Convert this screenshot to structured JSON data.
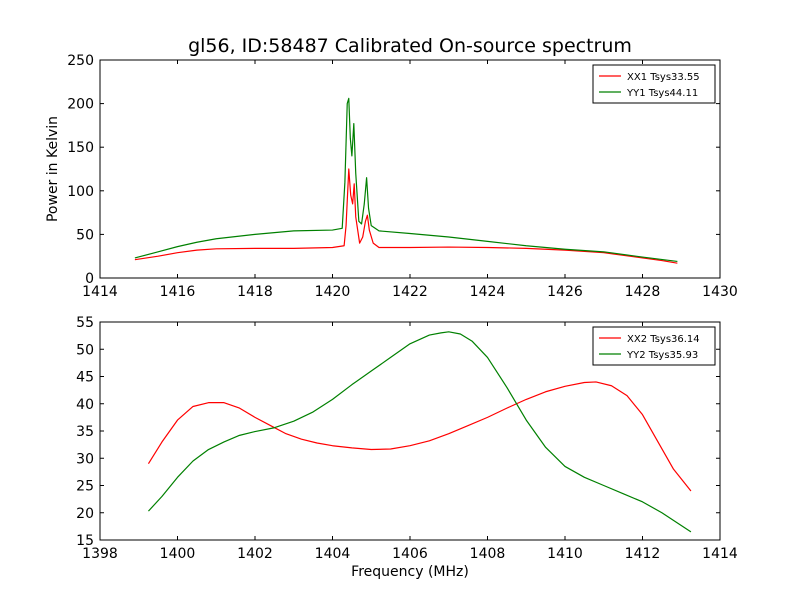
{
  "figure": {
    "title": "gl56, ID:58487 Calibrated On-source spectrum"
  },
  "chart_data": [
    {
      "type": "line",
      "title": "gl56, ID:58487 Calibrated On-source spectrum",
      "xlabel": "",
      "ylabel": "Power in Kelvin",
      "xlim": [
        1414,
        1430
      ],
      "ylim": [
        0,
        250
      ],
      "xticks": [
        1414,
        1416,
        1418,
        1420,
        1422,
        1424,
        1426,
        1428,
        1430
      ],
      "yticks": [
        0,
        50,
        100,
        150,
        200,
        250
      ],
      "legend": "top-right",
      "grid": false,
      "series": [
        {
          "name": "XX1 Tsys33.55",
          "color": "#ff0000",
          "x": [
            1414.9,
            1415.5,
            1416.0,
            1416.5,
            1417.0,
            1418.0,
            1419.0,
            1420.0,
            1420.3,
            1420.35,
            1420.42,
            1420.47,
            1420.52,
            1420.56,
            1420.6,
            1420.7,
            1420.78,
            1420.85,
            1420.9,
            1420.95,
            1421.05,
            1421.2,
            1422.0,
            1423.0,
            1424.0,
            1425.0,
            1426.0,
            1427.0,
            1427.5,
            1428.0,
            1428.5,
            1428.9
          ],
          "y": [
            21,
            25,
            29,
            32,
            33.5,
            34,
            34,
            35,
            37,
            60,
            125,
            95,
            85,
            108,
            70,
            40,
            47,
            65,
            72,
            55,
            40,
            35,
            35,
            35.5,
            35,
            34,
            32,
            29,
            26,
            23,
            20,
            17
          ]
        },
        {
          "name": "YY1 Tsys44.11",
          "color": "#008000",
          "x": [
            1414.9,
            1415.5,
            1416.0,
            1416.5,
            1417.0,
            1418.0,
            1419.0,
            1420.0,
            1420.25,
            1420.32,
            1420.38,
            1420.42,
            1420.46,
            1420.5,
            1420.55,
            1420.6,
            1420.68,
            1420.75,
            1420.82,
            1420.88,
            1420.93,
            1421.0,
            1421.2,
            1422.0,
            1423.0,
            1424.0,
            1425.0,
            1426.0,
            1427.0,
            1428.0,
            1428.9
          ],
          "y": [
            23,
            30,
            36,
            41,
            45,
            50,
            54,
            55,
            57,
            110,
            200,
            206,
            160,
            140,
            177,
            120,
            65,
            62,
            85,
            115,
            80,
            60,
            54,
            51,
            47,
            42,
            37,
            33,
            30,
            24,
            19
          ]
        }
      ]
    },
    {
      "type": "line",
      "title": "",
      "xlabel": "Frequency (MHz)",
      "ylabel": "",
      "xlim": [
        1398,
        1414
      ],
      "ylim": [
        15,
        55
      ],
      "xticks": [
        1398,
        1400,
        1402,
        1404,
        1406,
        1408,
        1410,
        1412,
        1414
      ],
      "yticks": [
        15,
        20,
        25,
        30,
        35,
        40,
        45,
        50,
        55
      ],
      "legend": "top-right",
      "grid": false,
      "series": [
        {
          "name": "XX2 Tsys36.14",
          "color": "#ff0000",
          "x": [
            1399.25,
            1399.6,
            1400.0,
            1400.4,
            1400.8,
            1401.2,
            1401.6,
            1402.0,
            1402.4,
            1402.8,
            1403.2,
            1403.6,
            1404.0,
            1404.5,
            1405.0,
            1405.5,
            1406.0,
            1406.5,
            1407.0,
            1407.5,
            1408.0,
            1408.5,
            1409.0,
            1409.5,
            1410.0,
            1410.5,
            1410.8,
            1411.2,
            1411.6,
            1412.0,
            1412.4,
            1412.8,
            1413.25
          ],
          "y": [
            29,
            33,
            37,
            39.5,
            40.2,
            40.2,
            39.2,
            37.5,
            36,
            34.5,
            33.5,
            32.8,
            32.3,
            31.9,
            31.6,
            31.7,
            32.3,
            33.2,
            34.5,
            36,
            37.5,
            39.2,
            40.8,
            42.2,
            43.2,
            43.9,
            44,
            43.3,
            41.5,
            38,
            33,
            28,
            24
          ]
        },
        {
          "name": "YY2 Tsys35.93",
          "color": "#008000",
          "x": [
            1399.25,
            1399.6,
            1400.0,
            1400.4,
            1400.8,
            1401.2,
            1401.6,
            1402.0,
            1402.5,
            1403.0,
            1403.5,
            1404.0,
            1404.5,
            1405.0,
            1405.5,
            1406.0,
            1406.5,
            1406.8,
            1407.0,
            1407.3,
            1407.6,
            1408.0,
            1408.5,
            1409.0,
            1409.5,
            1410.0,
            1410.5,
            1411.0,
            1411.5,
            1412.0,
            1412.5,
            1413.25
          ],
          "y": [
            20.3,
            23,
            26.5,
            29.5,
            31.6,
            33,
            34.2,
            34.9,
            35.6,
            36.8,
            38.5,
            40.8,
            43.5,
            46,
            48.5,
            51,
            52.6,
            53,
            53.2,
            52.8,
            51.5,
            48.5,
            43,
            37,
            32,
            28.5,
            26.5,
            25,
            23.5,
            22,
            20,
            16.5
          ]
        }
      ]
    }
  ]
}
